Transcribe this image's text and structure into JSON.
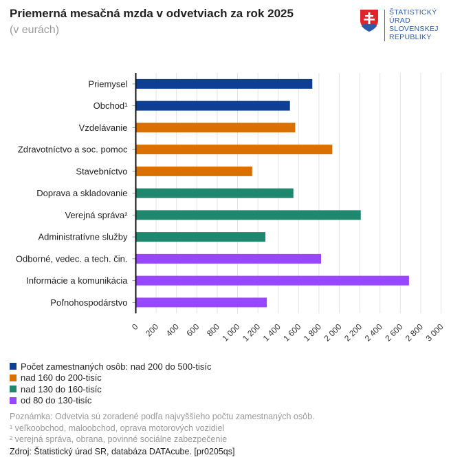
{
  "header": {
    "title": "Priemerná mesačná mzda v odvetviach za rok 2025",
    "subtitle": "(v eurách)"
  },
  "logo": {
    "lines": [
      "ŠTATISTICKÝ",
      "ÚRAD",
      "SLOVENSKEJ",
      "REPUBLIKY"
    ]
  },
  "chart_data": {
    "type": "bar",
    "orientation": "horizontal",
    "title": "Priemerná mesačná mzda v odvetviach za rok 2025",
    "subtitle": "(v eurách)",
    "categories": [
      "Priemysel",
      "Obchod¹",
      "Vzdelávanie",
      "Zdravotníctvo a soc. pomoc",
      "Stavebníctvo",
      "Doprava a skladovanie",
      "Verejná správa²",
      "Administratívne služby",
      "Odborné, vedec. a tech. čin.",
      "Informácie a komunikácia",
      "Poľnohospodárstvo"
    ],
    "values": [
      1735,
      1515,
      1567,
      1931,
      1144,
      1549,
      2211,
      1274,
      1821,
      2685,
      1288
    ],
    "groups": [
      0,
      0,
      1,
      1,
      1,
      2,
      2,
      2,
      3,
      3,
      3
    ],
    "xlim": [
      0,
      3000
    ],
    "ticks": [
      "0",
      "200",
      "400",
      "600",
      "800",
      "1 000",
      "1 200",
      "1 400",
      "1 600",
      "1 800",
      "2 000",
      "2 200",
      "2 400",
      "2 600",
      "2 800",
      "3 000"
    ],
    "grid": true,
    "legend_position": "bottom-left",
    "legend": [
      {
        "label": "Počet zamestnaných osôb: nad 200 do 500-tisíc",
        "color": "#0d3f95"
      },
      {
        "label": "nad 160 do 200-tisíc",
        "color": "#d97000"
      },
      {
        "label": "nad 130 do 160-tisíc",
        "color": "#1f876e"
      },
      {
        "label": "od 80 do 130-tisíc",
        "color": "#9747ff"
      }
    ]
  },
  "notes": [
    "Poznámka: Odvetvia sú zoradené podľa najvyššieho počtu zamestnaných osôb.",
    "¹ veľkoobchod, maloobchod, oprava motorových vozidiel",
    "² verejná správa, obrana, povinné sociálne zabezpečenie"
  ],
  "source": "Zdroj: Štatistický úrad SR, databáza DATAcube. [pr0205qs]"
}
